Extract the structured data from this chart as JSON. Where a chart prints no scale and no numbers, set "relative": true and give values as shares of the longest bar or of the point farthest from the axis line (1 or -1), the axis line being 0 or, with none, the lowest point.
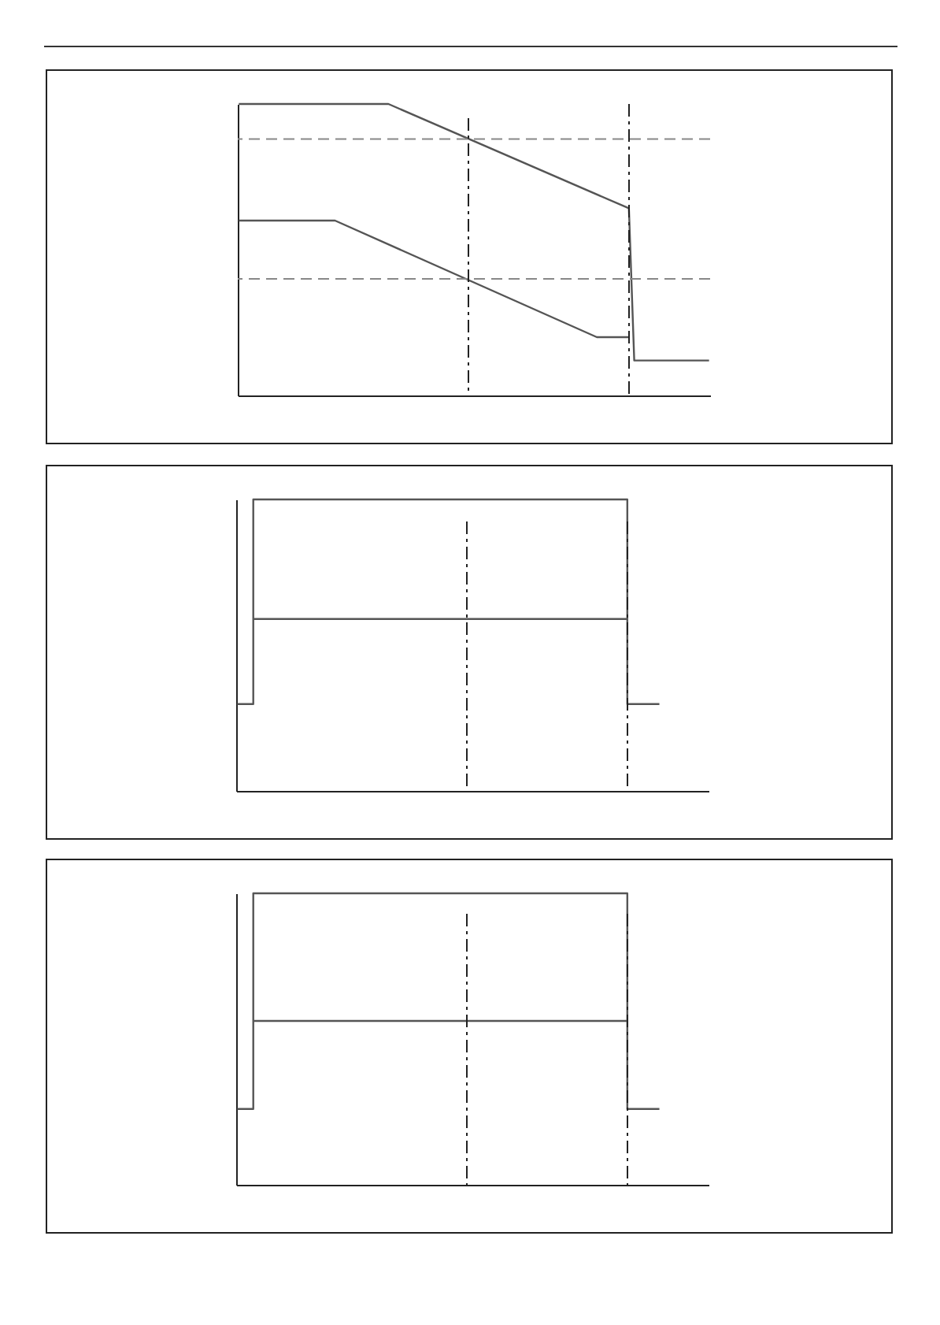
{
  "chart_data": [
    {
      "type": "line",
      "relative": true,
      "tick_labels": false,
      "categories": [
        null,
        null,
        null,
        null,
        null,
        null,
        null,
        null,
        null,
        null,
        null,
        null,
        null,
        null,
        null,
        null,
        null,
        null,
        null,
        null,
        null,
        null,
        null,
        null,
        null,
        null,
        null,
        null,
        null,
        null,
        null,
        null,
        null,
        null,
        null,
        null,
        null,
        null,
        null,
        null,
        null,
        null,
        null,
        null,
        null,
        null,
        null,
        null,
        null,
        null,
        null,
        null,
        null,
        null,
        null,
        null,
        null,
        null,
        null,
        null,
        null,
        null,
        null,
        null,
        null,
        null,
        null,
        null,
        null,
        null,
        null,
        null,
        null,
        null,
        null,
        null,
        null,
        null,
        null,
        null,
        null,
        null,
        null,
        null,
        null,
        null,
        null,
        null,
        null
      ],
      "series": [
        {
          "color": "#555555",
          "values": [
            1,
            null,
            null,
            null,
            null,
            null,
            null,
            null,
            null,
            null,
            null,
            null,
            null,
            null,
            null,
            null,
            null,
            null,
            null,
            null,
            null,
            null,
            null,
            null,
            null,
            null,
            null,
            null,
            1,
            null,
            null,
            null,
            null,
            null,
            null,
            null,
            null,
            null,
            null,
            null,
            null,
            null,
            null,
            null,
            null,
            null,
            null,
            null,
            null,
            null,
            null,
            null,
            null,
            null,
            null,
            null,
            null,
            null,
            null,
            null,
            null,
            null,
            null,
            null,
            null,
            null,
            null,
            null,
            null,
            null,
            null,
            null,
            null,
            0.642,
            0.12,
            null,
            null,
            null,
            null,
            null,
            null,
            null,
            null,
            null,
            null,
            null,
            null,
            null,
            0.12
          ]
        },
        {
          "color": "#555555",
          "values": [
            0.6,
            null,
            null,
            null,
            null,
            null,
            null,
            null,
            null,
            null,
            null,
            null,
            null,
            null,
            null,
            null,
            null,
            null,
            0.6,
            null,
            null,
            null,
            null,
            null,
            null,
            null,
            null,
            null,
            null,
            null,
            null,
            null,
            null,
            null,
            null,
            null,
            null,
            null,
            null,
            null,
            null,
            null,
            null,
            null,
            null,
            null,
            null,
            null,
            null,
            null,
            null,
            null,
            null,
            null,
            null,
            null,
            null,
            null,
            null,
            null,
            null,
            null,
            null,
            null,
            null,
            null,
            null,
            0.2,
            null,
            null,
            null,
            null,
            null,
            0.2,
            null,
            null,
            null,
            null,
            null,
            null,
            null,
            null,
            null,
            null,
            null,
            null,
            null,
            null,
            null
          ]
        }
      ],
      "ref_lines": [
        {
          "axis": "y",
          "value": 0.88,
          "color": "#888888",
          "line_style": "dashed"
        },
        {
          "axis": "y",
          "value": 0.4,
          "color": "#888888",
          "line_style": "dashed"
        }
      ]
    },
    {
      "type": "step",
      "relative": true,
      "tick_labels": false,
      "categories": [
        null,
        null,
        null,
        null,
        null,
        null,
        null,
        null,
        null,
        null,
        null,
        null,
        null,
        null,
        null,
        null,
        null,
        null,
        null,
        null,
        null,
        null,
        null,
        null,
        null,
        null,
        null,
        null,
        null,
        null,
        null,
        null,
        null,
        null,
        null,
        null,
        null,
        null,
        null,
        null,
        null,
        null,
        null,
        null,
        null,
        null,
        null,
        null,
        null,
        null,
        null,
        null,
        null,
        null,
        null,
        null,
        null,
        null,
        null,
        null,
        null,
        null,
        null,
        null,
        null,
        null,
        null,
        null,
        null,
        null,
        null,
        null,
        null,
        null,
        null,
        null,
        null,
        null,
        null,
        null,
        null,
        null,
        null,
        null,
        null,
        null,
        null,
        null,
        null
      ],
      "series": [
        {
          "color": "#555555",
          "values": [
            0.298,
            null,
            null,
            1,
            null,
            null,
            null,
            null,
            null,
            null,
            null,
            null,
            null,
            null,
            null,
            null,
            null,
            null,
            null,
            null,
            null,
            null,
            null,
            null,
            null,
            null,
            null,
            null,
            null,
            null,
            null,
            null,
            null,
            null,
            null,
            null,
            null,
            null,
            null,
            null,
            null,
            null,
            null,
            null,
            null,
            null,
            null,
            null,
            null,
            null,
            null,
            null,
            null,
            null,
            null,
            null,
            null,
            null,
            null,
            null,
            null,
            null,
            null,
            null,
            null,
            null,
            null,
            null,
            null,
            null,
            null,
            null,
            null,
            0.298,
            null,
            null,
            null,
            null,
            null,
            0.298,
            null,
            null,
            null,
            null,
            null,
            null,
            null,
            null,
            null
          ]
        },
        {
          "color": "#555555",
          "values": [
            null,
            null,
            null,
            0.59,
            null,
            null,
            null,
            null,
            null,
            null,
            null,
            null,
            null,
            null,
            null,
            null,
            null,
            null,
            null,
            null,
            null,
            null,
            null,
            null,
            null,
            null,
            null,
            null,
            null,
            null,
            null,
            null,
            null,
            null,
            null,
            null,
            null,
            null,
            null,
            null,
            null,
            null,
            null,
            null,
            null,
            null,
            null,
            null,
            null,
            null,
            null,
            null,
            null,
            null,
            null,
            null,
            null,
            null,
            null,
            null,
            null,
            null,
            null,
            null,
            null,
            null,
            null,
            null,
            null,
            null,
            null,
            null,
            null,
            0.59,
            null,
            null,
            null,
            null,
            null,
            null,
            null,
            null,
            null,
            null,
            null,
            null,
            null,
            null,
            null
          ]
        }
      ]
    },
    {
      "type": "step",
      "relative": true,
      "tick_labels": false,
      "categories": [
        null,
        null,
        null,
        null,
        null,
        null,
        null,
        null,
        null,
        null,
        null,
        null,
        null,
        null,
        null,
        null,
        null,
        null,
        null,
        null,
        null,
        null,
        null,
        null,
        null,
        null,
        null,
        null,
        null,
        null,
        null,
        null,
        null,
        null,
        null,
        null,
        null,
        null,
        null,
        null,
        null,
        null,
        null,
        null,
        null,
        null,
        null,
        null,
        null,
        null,
        null,
        null,
        null,
        null,
        null,
        null,
        null,
        null,
        null,
        null,
        null,
        null,
        null,
        null,
        null,
        null,
        null,
        null,
        null,
        null,
        null,
        null,
        null,
        null,
        null,
        null,
        null,
        null,
        null,
        null,
        null,
        null,
        null,
        null,
        null,
        null,
        null,
        null,
        null
      ],
      "series": [
        {
          "color": "#555555",
          "values": [
            0.26,
            null,
            null,
            1,
            null,
            null,
            null,
            null,
            null,
            null,
            null,
            null,
            null,
            null,
            null,
            null,
            null,
            null,
            null,
            null,
            null,
            null,
            null,
            null,
            null,
            null,
            null,
            null,
            null,
            null,
            null,
            null,
            null,
            null,
            null,
            null,
            null,
            null,
            null,
            null,
            null,
            null,
            null,
            null,
            null,
            null,
            null,
            null,
            null,
            null,
            null,
            null,
            null,
            null,
            null,
            null,
            null,
            null,
            null,
            null,
            null,
            null,
            null,
            null,
            null,
            null,
            null,
            null,
            null,
            null,
            null,
            null,
            null,
            0.26,
            null,
            null,
            null,
            null,
            null,
            0.26,
            null,
            null,
            null,
            null,
            null,
            null,
            null,
            null,
            null
          ]
        },
        {
          "color": "#555555",
          "values": [
            null,
            null,
            null,
            0.562,
            null,
            null,
            null,
            null,
            null,
            null,
            null,
            null,
            null,
            null,
            null,
            null,
            null,
            null,
            null,
            null,
            null,
            null,
            null,
            null,
            null,
            null,
            null,
            null,
            null,
            null,
            null,
            null,
            null,
            null,
            null,
            null,
            null,
            null,
            null,
            null,
            null,
            null,
            null,
            null,
            null,
            null,
            null,
            null,
            null,
            null,
            null,
            null,
            null,
            null,
            null,
            null,
            null,
            null,
            null,
            null,
            null,
            null,
            null,
            null,
            null,
            null,
            null,
            null,
            null,
            null,
            null,
            null,
            null,
            0.562,
            null,
            null,
            null,
            null,
            null,
            null,
            null,
            null,
            null,
            null,
            null,
            null,
            null,
            null,
            null
          ]
        }
      ]
    }
  ]
}
